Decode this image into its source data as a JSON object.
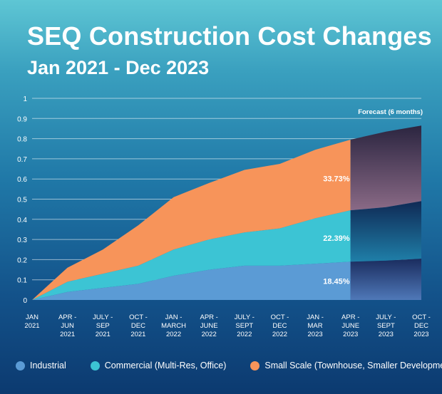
{
  "title": "SEQ Construction Cost Changes",
  "subtitle": "Jan 2021 - Dec 2023",
  "forecast_label": "Forecast (6 months)",
  "colors": {
    "industrial": "#5b9bd5",
    "commercial": "#3cc4d4",
    "small_scale": "#f7945a"
  },
  "chart_data": {
    "type": "area",
    "stacked": true,
    "ylim": [
      0,
      1
    ],
    "yticks": [
      "0",
      "0.1",
      "0.2",
      "0.3",
      "0.4",
      "0.5",
      "0.6",
      "0.7",
      "0.8",
      "0.9",
      "1"
    ],
    "grid": true,
    "legend_position": "bottom",
    "x": [
      [
        "JAN",
        "2021"
      ],
      [
        "APR -",
        "JUN",
        "2021"
      ],
      [
        "JULY -",
        "SEP",
        "2021"
      ],
      [
        "OCT -",
        "DEC",
        "2021"
      ],
      [
        "JAN -",
        "MARCH",
        "2022"
      ],
      [
        "APR -",
        "JUNE",
        "2022"
      ],
      [
        "JULY -",
        "SEPT",
        "2022"
      ],
      [
        "OCT -",
        "DEC",
        "2022"
      ],
      [
        "JAN -",
        "MAR",
        "2023"
      ],
      [
        "APR -",
        "JUNE",
        "2023"
      ],
      [
        "JULY -",
        "SEPT",
        "2023"
      ],
      [
        "OCT -",
        "DEC",
        "2023"
      ]
    ],
    "forecast_start_index": 9,
    "series": [
      {
        "name": "Industrial",
        "values": [
          0,
          0.04,
          0.06,
          0.08,
          0.12,
          0.15,
          0.17,
          0.17,
          0.18,
          0.19,
          0.195,
          0.205
        ]
      },
      {
        "name": "Commercial (Multi-Res, Office)",
        "values": [
          0,
          0.05,
          0.07,
          0.09,
          0.13,
          0.15,
          0.165,
          0.185,
          0.225,
          0.255,
          0.265,
          0.285
        ]
      },
      {
        "name": "Small Scale (Townhouse, Smaller Developments)",
        "values": [
          0,
          0.07,
          0.12,
          0.2,
          0.26,
          0.28,
          0.31,
          0.32,
          0.34,
          0.35,
          0.375,
          0.375
        ]
      }
    ],
    "annotations": [
      "18.45%",
      "22.39%",
      "33.73%"
    ]
  }
}
